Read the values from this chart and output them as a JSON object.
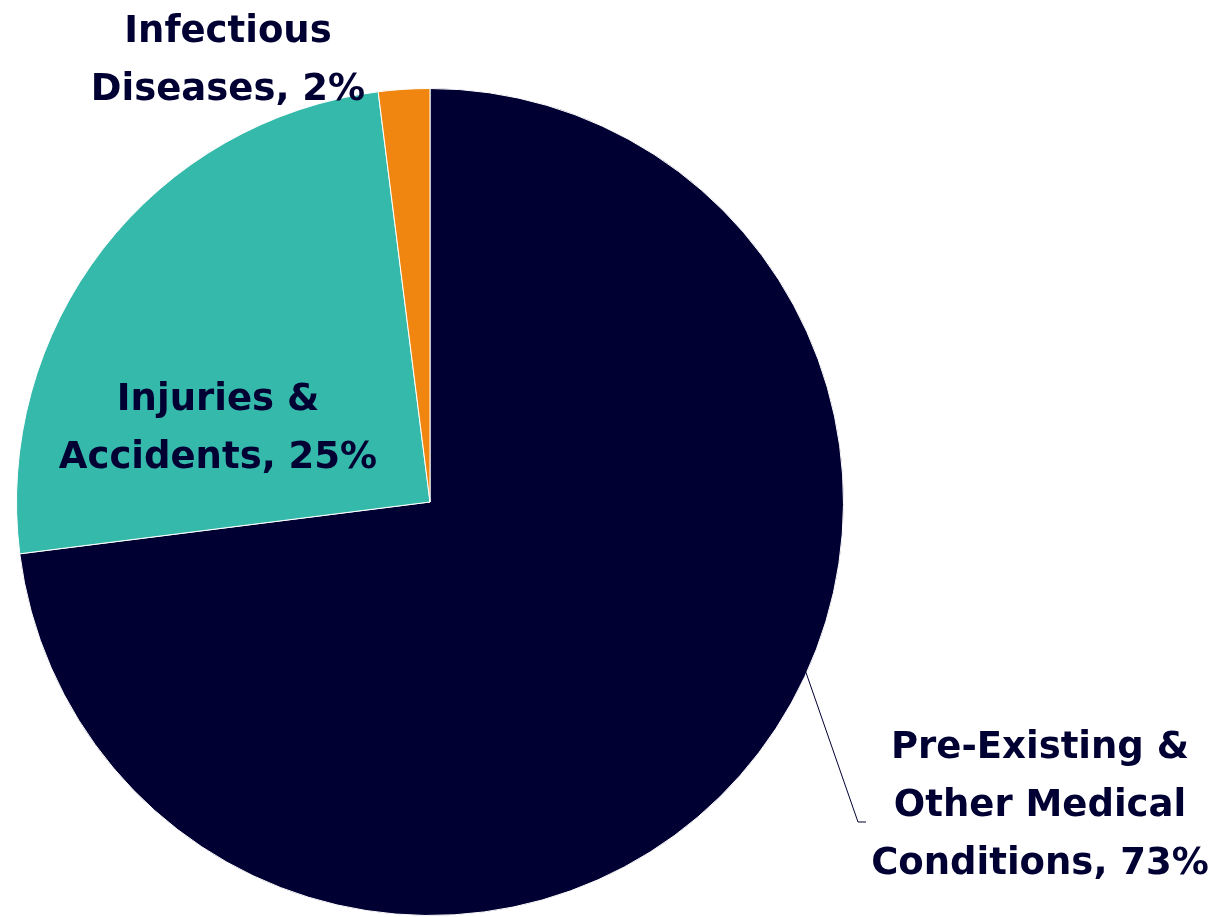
{
  "chart_data": {
    "type": "pie",
    "categories": [
      "Pre-Existing & Other Medical Conditions",
      "Injuries & Accidents",
      "Infectious Diseases"
    ],
    "values": [
      73,
      25,
      2
    ],
    "value_labels": [
      "73%",
      "25%",
      "2%"
    ],
    "colors": [
      "#000033",
      "#35b9ab",
      "#f0860f"
    ],
    "legend": false
  }
}
